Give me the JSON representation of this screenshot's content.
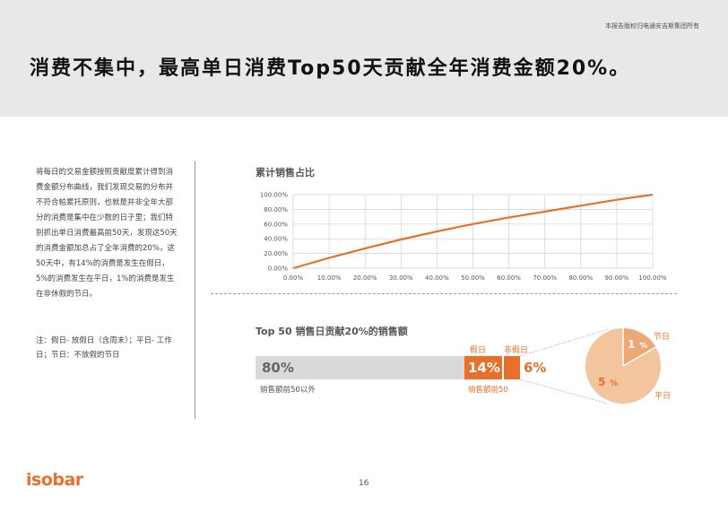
{
  "header": {
    "copyright": "本报告版权归电通安吉斯集团所有",
    "title": "消费不集中，最高单日消费Top50天贡献全年消费金额20%。"
  },
  "left_text": {
    "description": "将每日的交易金额按照贡献度累计得到消费金额分布曲线，我们发现交易的分布并不符合帕累托原则，也就是并非全年大部分的消费是集中在少数的日子里；我们特别抓出单日消费最高前50天，发现这50天的消费金额加总占了全年消费的20%，这50天中，有14%的消费是发生在假日，5%的消费发生在平日，1%的消费是发生在非休假的节日。",
    "note": "注：假日- 放假日（含周末）；平日- 工作日；节日：不放假的节日"
  },
  "chart_data": [
    {
      "type": "line",
      "title": "累计销售占比",
      "x": [
        0,
        10,
        20,
        30,
        40,
        50,
        60,
        70,
        80,
        90,
        100
      ],
      "series": [
        {
          "values": [
            0,
            14,
            27,
            39,
            50,
            60,
            69,
            77,
            85,
            93,
            100
          ]
        }
      ],
      "x_ticks": [
        "0.00%",
        "10.00%",
        "20.00%",
        "30.00%",
        "40.00%",
        "50.00%",
        "60.00%",
        "70.00%",
        "80.00%",
        "90.00%",
        "100.00%"
      ],
      "y_ticks": [
        "0.00%",
        "20.00%",
        "40.00%",
        "60.00%",
        "80.00%",
        "100.00%"
      ],
      "xlim": [
        0,
        100
      ],
      "ylim": [
        0,
        100
      ],
      "grid": true,
      "color": "#e8702a"
    },
    {
      "type": "bar",
      "title": "Top 50 销售日贡献20%的销售额",
      "categories": [
        "销售额前50以外",
        "假日",
        "非假日"
      ],
      "values": [
        80,
        14,
        6
      ],
      "value_labels": [
        "80%",
        "14%",
        "6%"
      ],
      "captions": {
        "rest": "销售额前50以外",
        "top": "销售额前50"
      }
    },
    {
      "type": "pie",
      "categories": [
        "节日",
        "平日"
      ],
      "values": [
        1,
        5
      ],
      "value_labels": [
        {
          "num": "1",
          "unit": "%"
        },
        {
          "num": "5",
          "unit": "%"
        }
      ],
      "colors": [
        "#eda878",
        "#f3c59e"
      ]
    }
  ],
  "footer": {
    "logo": "isobar",
    "page_number": "16"
  },
  "colors": {
    "accent": "#e8702a",
    "header_bg": "#e8e8e8",
    "grey_bar": "#d9d9d9"
  }
}
